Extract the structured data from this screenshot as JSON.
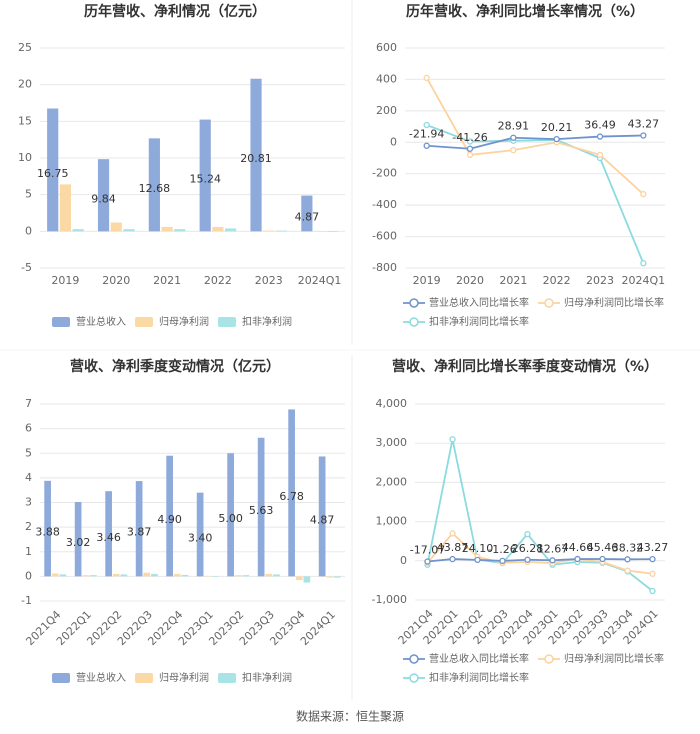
{
  "chart_data": [
    {
      "type": "bar",
      "title": "历年营收、净利情况（亿元）",
      "categories": [
        "2019",
        "2020",
        "2021",
        "2022",
        "2023",
        "2024Q1"
      ],
      "series": [
        {
          "name": "营业总收入",
          "color": "#8eaadb",
          "values": [
            16.75,
            9.84,
            12.68,
            15.24,
            20.81,
            4.87
          ],
          "value_labels": [
            "16.75",
            "9.84",
            "12.68",
            "15.24",
            "20.81",
            "4.87"
          ]
        },
        {
          "name": "归母净利润",
          "color": "#fbd9a5",
          "values": [
            6.4,
            1.2,
            0.6,
            0.6,
            0.1,
            0.05
          ]
        },
        {
          "name": "扣非净利润",
          "color": "#a8e3e5",
          "values": [
            0.3,
            0.3,
            0.3,
            0.4,
            0.1,
            -0.05
          ]
        }
      ],
      "ylim": [
        -5,
        25
      ],
      "yticks": [
        -5,
        0,
        5,
        10,
        15,
        20,
        25
      ],
      "grid": true,
      "legend": "bottom"
    },
    {
      "type": "line",
      "title": "历年营收、净利同比增长率情况（%）",
      "categories": [
        "2019",
        "2020",
        "2021",
        "2022",
        "2023",
        "2024Q1"
      ],
      "series": [
        {
          "name": "营业总收入同比增长率",
          "color": "#6f93cd",
          "values": [
            -21.94,
            -41.26,
            28.91,
            20.21,
            36.49,
            43.27
          ],
          "value_labels": [
            "-21.94",
            "-41.26",
            "28.91",
            "20.21",
            "36.49",
            "43.27"
          ]
        },
        {
          "name": "归母净利润同比增长率",
          "color": "#fcd29f",
          "values": [
            410,
            -80,
            -50,
            0,
            -80,
            -330
          ]
        },
        {
          "name": "扣非净利润同比增长率",
          "color": "#8adbe0",
          "values": [
            110,
            5,
            10,
            15,
            -100,
            -770
          ]
        }
      ],
      "ylim": [
        -800,
        600
      ],
      "yticks": [
        -800,
        -600,
        -400,
        -200,
        0,
        200,
        400,
        600
      ],
      "grid": true,
      "legend": "bottom"
    },
    {
      "type": "bar",
      "title": "营收、净利季度变动情况（亿元）",
      "categories": [
        "2021Q4",
        "2022Q1",
        "2022Q2",
        "2022Q3",
        "2022Q4",
        "2023Q1",
        "2023Q2",
        "2023Q3",
        "2023Q4",
        "2024Q1"
      ],
      "series": [
        {
          "name": "营业总收入",
          "color": "#8eaadb",
          "values": [
            3.88,
            3.02,
            3.46,
            3.87,
            4.9,
            3.4,
            5.0,
            5.63,
            6.78,
            4.87
          ],
          "value_labels": [
            "3.88",
            "3.02",
            "3.46",
            "3.87",
            "4.90",
            "3.40",
            "5.00",
            "5.63",
            "6.78",
            "4.87"
          ]
        },
        {
          "name": "归母净利润",
          "color": "#fbd9a5",
          "values": [
            0.12,
            0.05,
            0.1,
            0.15,
            0.1,
            0.02,
            0.05,
            0.1,
            -0.15,
            -0.05
          ]
        },
        {
          "name": "扣非净利润",
          "color": "#a8e3e5",
          "values": [
            0.08,
            0.05,
            0.08,
            0.1,
            0.06,
            -0.02,
            0.05,
            0.08,
            -0.25,
            -0.05
          ]
        }
      ],
      "ylim": [
        -1,
        7
      ],
      "yticks": [
        -1,
        0,
        1,
        2,
        3,
        4,
        5,
        6,
        7
      ],
      "grid": true,
      "legend": "bottom"
    },
    {
      "type": "line",
      "title": "营收、净利同比增长率季度变动情况（%）",
      "categories": [
        "2021Q4",
        "2022Q1",
        "2022Q2",
        "2022Q3",
        "2022Q4",
        "2023Q1",
        "2023Q2",
        "2023Q3",
        "2023Q4",
        "2024Q1"
      ],
      "series": [
        {
          "name": "营业总收入同比增长率",
          "color": "#6f93cd",
          "values": [
            -17.07,
            43.87,
            24.1,
            -1.26,
            26.28,
            12.67,
            44.66,
            45.46,
            38.32,
            43.27
          ],
          "value_labels": [
            "-17.07",
            "43.87",
            "24.10",
            "-1.26",
            "26.28",
            "12.67",
            "44.66",
            "45.46",
            "38.32",
            "43.27"
          ]
        },
        {
          "name": "归母净利润同比增长率",
          "color": "#fcd29f",
          "values": [
            -50,
            700,
            100,
            -50,
            -30,
            -60,
            50,
            -30,
            -250,
            -330
          ]
        },
        {
          "name": "扣非净利润同比增长率",
          "color": "#8adbe0",
          "values": [
            -100,
            3100,
            30,
            -60,
            680,
            -100,
            -30,
            -50,
            -270,
            -770
          ]
        }
      ],
      "ylim": [
        -1000,
        4000
      ],
      "yticks": [
        {
          "value": -1000,
          "label": "-1,000"
        },
        0,
        {
          "value": 1000,
          "label": "1,000"
        },
        {
          "value": 2000,
          "label": "2,000"
        },
        {
          "value": 3000,
          "label": "3,000"
        },
        {
          "value": 4000,
          "label": "4,000"
        }
      ],
      "grid": true,
      "legend": "bottom"
    }
  ],
  "source": "数据来源：恒生聚源"
}
